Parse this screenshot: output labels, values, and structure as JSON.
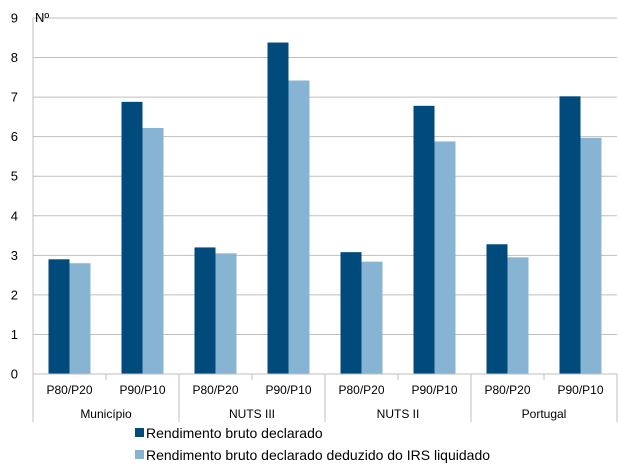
{
  "chart_data": {
    "type": "bar",
    "ylabel": "Nº",
    "ylim": [
      0,
      9
    ],
    "yticks": [
      0,
      1,
      2,
      3,
      4,
      5,
      6,
      7,
      8,
      9
    ],
    "grid": true,
    "legend_position": "bottom",
    "groups": [
      {
        "label": "Município",
        "categories": [
          "P80/P20",
          "P90/P10"
        ]
      },
      {
        "label": "NUTS III",
        "categories": [
          "P80/P20",
          "P90/P10"
        ]
      },
      {
        "label": "NUTS II",
        "categories": [
          "P80/P20",
          "P90/P10"
        ]
      },
      {
        "label": "Portugal",
        "categories": [
          "P80/P20",
          "P90/P10"
        ]
      }
    ],
    "series": [
      {
        "name": "Rendimento bruto declarado",
        "color": "#004a7c",
        "values": [
          2.9,
          6.88,
          3.2,
          8.38,
          3.08,
          6.78,
          3.28,
          7.02
        ]
      },
      {
        "name": "Rendimento bruto declarado deduzido do IRS liquidado",
        "color": "#88b4d4",
        "values": [
          2.8,
          6.22,
          3.05,
          7.42,
          2.84,
          5.88,
          2.95,
          5.97
        ]
      }
    ]
  }
}
